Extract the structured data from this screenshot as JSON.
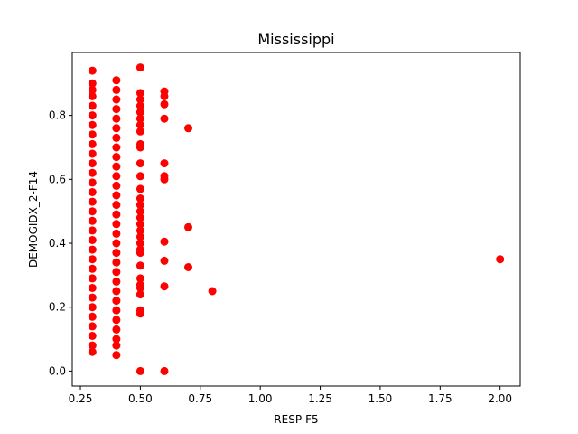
{
  "chart_data": {
    "type": "scatter",
    "title": "Mississippi",
    "xlabel": "RESP-F5",
    "ylabel": "DEMOGIDX_2-F14",
    "xlim": [
      0.216,
      2.084
    ],
    "ylim": [
      -0.047,
      0.997
    ],
    "xticks": [
      0.25,
      0.5,
      0.75,
      1.0,
      1.25,
      1.5,
      1.75,
      2.0
    ],
    "xtick_labels": [
      "0.25",
      "0.50",
      "0.75",
      "1.00",
      "1.25",
      "1.50",
      "1.75",
      "2.00"
    ],
    "yticks": [
      0.0,
      0.2,
      0.4,
      0.6,
      0.8
    ],
    "ytick_labels": [
      "0.0",
      "0.2",
      "0.4",
      "0.6",
      "0.8"
    ],
    "grid": false,
    "marker_color": "#ff0000",
    "points": [
      [
        0.3,
        0.94
      ],
      [
        0.3,
        0.9
      ],
      [
        0.3,
        0.88
      ],
      [
        0.3,
        0.86
      ],
      [
        0.3,
        0.83
      ],
      [
        0.3,
        0.8
      ],
      [
        0.3,
        0.77
      ],
      [
        0.3,
        0.74
      ],
      [
        0.3,
        0.71
      ],
      [
        0.3,
        0.68
      ],
      [
        0.3,
        0.65
      ],
      [
        0.3,
        0.62
      ],
      [
        0.3,
        0.59
      ],
      [
        0.3,
        0.56
      ],
      [
        0.3,
        0.53
      ],
      [
        0.3,
        0.5
      ],
      [
        0.3,
        0.47
      ],
      [
        0.3,
        0.44
      ],
      [
        0.3,
        0.41
      ],
      [
        0.3,
        0.38
      ],
      [
        0.3,
        0.35
      ],
      [
        0.3,
        0.32
      ],
      [
        0.3,
        0.29
      ],
      [
        0.3,
        0.26
      ],
      [
        0.3,
        0.23
      ],
      [
        0.3,
        0.2
      ],
      [
        0.3,
        0.17
      ],
      [
        0.3,
        0.14
      ],
      [
        0.3,
        0.11
      ],
      [
        0.3,
        0.08
      ],
      [
        0.3,
        0.06
      ],
      [
        0.4,
        0.91
      ],
      [
        0.4,
        0.88
      ],
      [
        0.4,
        0.85
      ],
      [
        0.4,
        0.82
      ],
      [
        0.4,
        0.79
      ],
      [
        0.4,
        0.76
      ],
      [
        0.4,
        0.73
      ],
      [
        0.4,
        0.7
      ],
      [
        0.4,
        0.67
      ],
      [
        0.4,
        0.64
      ],
      [
        0.4,
        0.61
      ],
      [
        0.4,
        0.58
      ],
      [
        0.4,
        0.55
      ],
      [
        0.4,
        0.52
      ],
      [
        0.4,
        0.49
      ],
      [
        0.4,
        0.46
      ],
      [
        0.4,
        0.43
      ],
      [
        0.4,
        0.4
      ],
      [
        0.4,
        0.37
      ],
      [
        0.4,
        0.34
      ],
      [
        0.4,
        0.31
      ],
      [
        0.4,
        0.28
      ],
      [
        0.4,
        0.25
      ],
      [
        0.4,
        0.22
      ],
      [
        0.4,
        0.19
      ],
      [
        0.4,
        0.16
      ],
      [
        0.4,
        0.13
      ],
      [
        0.4,
        0.1
      ],
      [
        0.4,
        0.08
      ],
      [
        0.4,
        0.05
      ],
      [
        0.5,
        0.95
      ],
      [
        0.5,
        0.87
      ],
      [
        0.5,
        0.85
      ],
      [
        0.5,
        0.83
      ],
      [
        0.5,
        0.81
      ],
      [
        0.5,
        0.79
      ],
      [
        0.5,
        0.77
      ],
      [
        0.5,
        0.75
      ],
      [
        0.5,
        0.71
      ],
      [
        0.5,
        0.7
      ],
      [
        0.5,
        0.65
      ],
      [
        0.5,
        0.61
      ],
      [
        0.5,
        0.57
      ],
      [
        0.5,
        0.54
      ],
      [
        0.5,
        0.52
      ],
      [
        0.5,
        0.5
      ],
      [
        0.5,
        0.48
      ],
      [
        0.5,
        0.46
      ],
      [
        0.5,
        0.44
      ],
      [
        0.5,
        0.42
      ],
      [
        0.5,
        0.4
      ],
      [
        0.5,
        0.38
      ],
      [
        0.5,
        0.37
      ],
      [
        0.5,
        0.33
      ],
      [
        0.5,
        0.29
      ],
      [
        0.5,
        0.27
      ],
      [
        0.5,
        0.26
      ],
      [
        0.5,
        0.24
      ],
      [
        0.5,
        0.19
      ],
      [
        0.5,
        0.18
      ],
      [
        0.5,
        0.0
      ],
      [
        0.6,
        0.875
      ],
      [
        0.6,
        0.86
      ],
      [
        0.6,
        0.835
      ],
      [
        0.6,
        0.79
      ],
      [
        0.6,
        0.65
      ],
      [
        0.6,
        0.61
      ],
      [
        0.6,
        0.6
      ],
      [
        0.6,
        0.405
      ],
      [
        0.6,
        0.345
      ],
      [
        0.6,
        0.265
      ],
      [
        0.6,
        0.0
      ],
      [
        0.7,
        0.76
      ],
      [
        0.7,
        0.45
      ],
      [
        0.7,
        0.325
      ],
      [
        0.8,
        0.25
      ],
      [
        2.0,
        0.35
      ]
    ]
  }
}
